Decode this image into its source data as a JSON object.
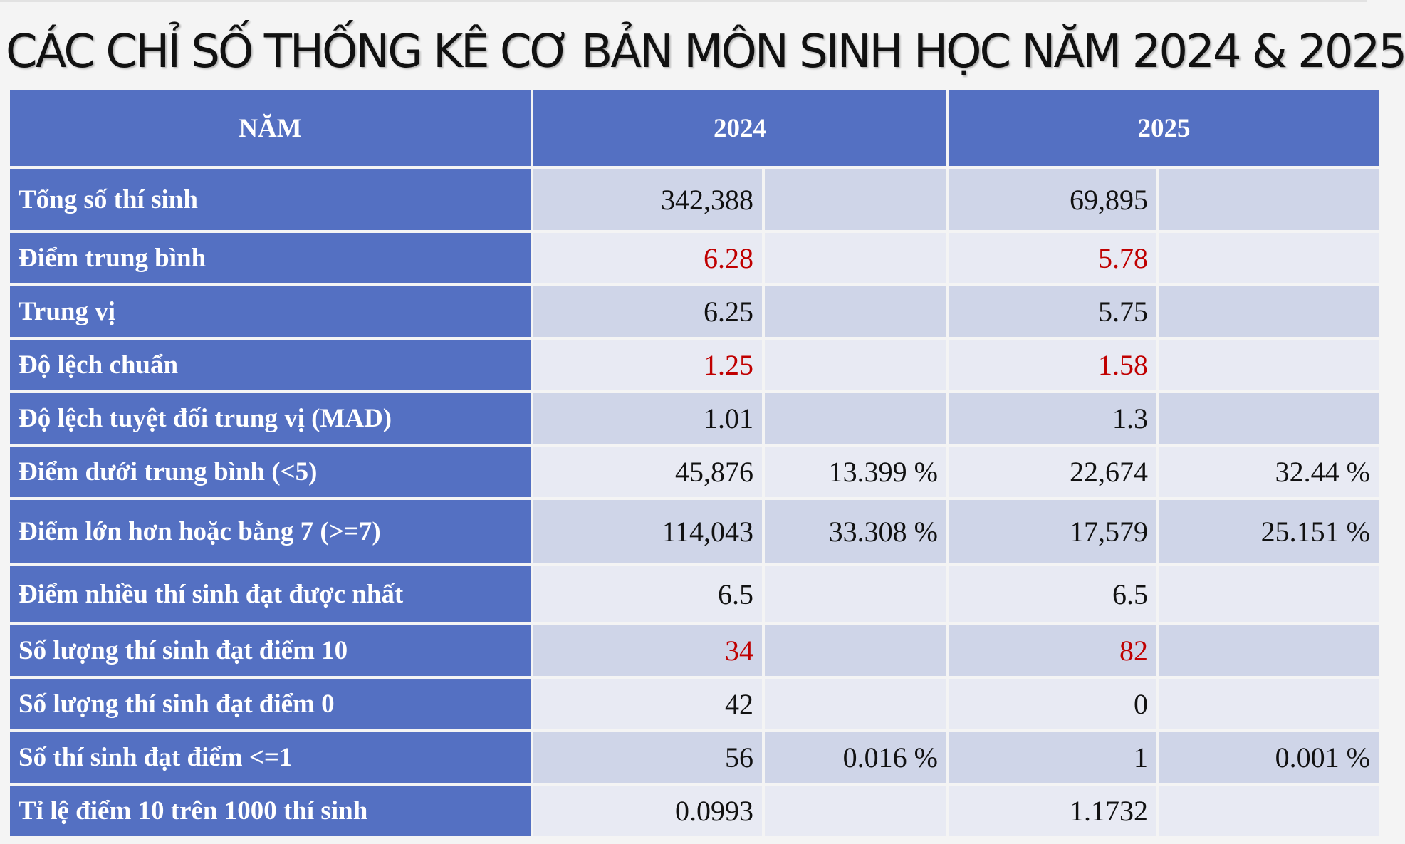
{
  "title": "CÁC CHỈ SỐ THỐNG KÊ CƠ BẢN MÔN SINH HỌC NĂM 2024 & 2025",
  "header": {
    "year_label": "NĂM",
    "y2024": "2024",
    "y2025": "2025"
  },
  "colors": {
    "header_bg": "#5470c2",
    "row_dark": "#cfd5e8",
    "row_light": "#e8eaf3",
    "highlight_text": "#c00000"
  },
  "rows": [
    {
      "label": "Tổng số thí sinh",
      "v2024": "342,388",
      "p2024": "",
      "v2025": "69,895",
      "p2025": ""
    },
    {
      "label": "Điểm trung bình",
      "v2024": "6.28",
      "p2024": "",
      "v2025": "5.78",
      "p2025": ""
    },
    {
      "label": "Trung vị",
      "v2024": "6.25",
      "p2024": "",
      "v2025": "5.75",
      "p2025": ""
    },
    {
      "label": "Độ lệch chuẩn",
      "v2024": "1.25",
      "p2024": "",
      "v2025": "1.58",
      "p2025": ""
    },
    {
      "label": "Độ lệch tuyệt đối trung vị (MAD)",
      "v2024": "1.01",
      "p2024": "",
      "v2025": "1.3",
      "p2025": ""
    },
    {
      "label": "Điểm dưới trung bình (<5)",
      "v2024": "45,876",
      "p2024": "13.399 %",
      "v2025": "22,674",
      "p2025": "32.44 %"
    },
    {
      "label": "Điểm lớn hơn hoặc bằng 7 (>=7)",
      "v2024": "114,043",
      "p2024": "33.308 %",
      "v2025": "17,579",
      "p2025": "25.151 %"
    },
    {
      "label": "Điểm nhiều thí sinh đạt được nhất",
      "v2024": "6.5",
      "p2024": "",
      "v2025": "6.5",
      "p2025": ""
    },
    {
      "label": "Số lượng thí sinh đạt điểm 10",
      "v2024": "34",
      "p2024": "",
      "v2025": "82",
      "p2025": ""
    },
    {
      "label": "Số lượng thí sinh đạt điểm 0",
      "v2024": "42",
      "p2024": "",
      "v2025": "0",
      "p2025": ""
    },
    {
      "label": "Số thí sinh đạt điểm <=1",
      "v2024": "56",
      "p2024": "0.016 %",
      "v2025": "1",
      "p2025": "0.001 %"
    },
    {
      "label": "Tỉ lệ điểm 10 trên 1000 thí sinh",
      "v2024": "0.0993",
      "p2024": "",
      "v2025": "1.1732",
      "p2025": ""
    }
  ]
}
